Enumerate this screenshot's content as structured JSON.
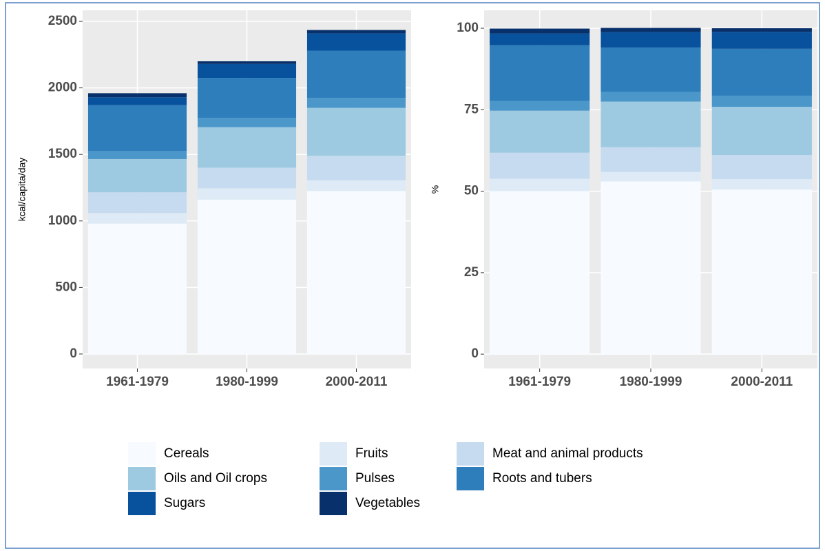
{
  "chart_data": [
    {
      "type": "stacked_bar",
      "y_label": "kcal/capita/day",
      "categories": [
        "1961-1979",
        "1980-1999",
        "2000-2011"
      ],
      "ylim": [
        -109,
        2583
      ],
      "yticks": [
        0,
        500,
        1000,
        1500,
        2000,
        2500
      ],
      "grid": true,
      "series": [
        {
          "name": "Cereals",
          "color": "#F7FBFF",
          "values": [
            980,
            1160,
            1225
          ]
        },
        {
          "name": "Fruits",
          "color": "#DEEBF7",
          "values": [
            80,
            85,
            80
          ]
        },
        {
          "name": "Meat and animal products",
          "color": "#C6DBEF",
          "values": [
            155,
            155,
            185
          ]
        },
        {
          "name": "Oils and Oil crops",
          "color": "#9ECAE1",
          "values": [
            250,
            305,
            360
          ]
        },
        {
          "name": "Pulses",
          "color": "#4B97CA",
          "values": [
            60,
            70,
            75
          ]
        },
        {
          "name": "Roots and tubers",
          "color": "#2E7EBC",
          "values": [
            345,
            300,
            355
          ]
        },
        {
          "name": "Sugars",
          "color": "#08519C",
          "values": [
            60,
            105,
            130
          ]
        },
        {
          "name": "Vegetables",
          "color": "#08306B",
          "values": [
            30,
            20,
            25
          ]
        }
      ]
    },
    {
      "type": "stacked_bar",
      "y_label": "%",
      "categories": [
        "1961-1979",
        "1980-1999",
        "2000-2011"
      ],
      "ylim": [
        -4.4,
        105.5
      ],
      "yticks": [
        0,
        25,
        50,
        75,
        100
      ],
      "grid": true,
      "series": [
        {
          "name": "Cereals",
          "color": "#F7FBFF",
          "values": [
            50,
            53,
            50.5
          ]
        },
        {
          "name": "Fruits",
          "color": "#DEEBF7",
          "values": [
            3.8,
            2.9,
            3.2
          ]
        },
        {
          "name": "Meat and animal products",
          "color": "#C6DBEF",
          "values": [
            8,
            7.6,
            7.4
          ]
        },
        {
          "name": "Oils and Oil crops",
          "color": "#9ECAE1",
          "values": [
            12.9,
            14,
            14.8
          ]
        },
        {
          "name": "Pulses",
          "color": "#4B97CA",
          "values": [
            3,
            2.9,
            3.4
          ]
        },
        {
          "name": "Roots and tubers",
          "color": "#2E7EBC",
          "values": [
            17.1,
            13.7,
            14.4
          ]
        },
        {
          "name": "Sugars",
          "color": "#08519C",
          "values": [
            3.6,
            4.7,
            5.2
          ]
        },
        {
          "name": "Vegetables",
          "color": "#08306B",
          "values": [
            1.5,
            1.3,
            1.1
          ]
        }
      ]
    }
  ]
}
